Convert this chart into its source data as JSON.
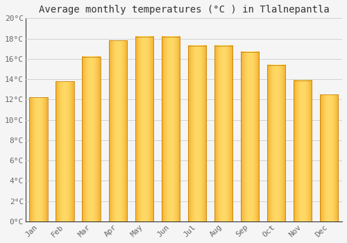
{
  "title": "Average monthly temperatures (°C ) in Tlalnepantla",
  "months": [
    "Jan",
    "Feb",
    "Mar",
    "Apr",
    "May",
    "Jun",
    "Jul",
    "Aug",
    "Sep",
    "Oct",
    "Nov",
    "Dec"
  ],
  "temperatures": [
    12.2,
    13.8,
    16.2,
    17.8,
    18.2,
    18.2,
    17.3,
    17.3,
    16.7,
    15.4,
    13.9,
    12.5
  ],
  "bar_color_edge": "#E8930A",
  "bar_color_center": "#FFD966",
  "bar_color_bottom": "#E8930A",
  "ylim": [
    0,
    20
  ],
  "ytick_step": 2,
  "background_color": "#F5F5F5",
  "plot_bg_color": "#F5F5F5",
  "grid_color": "#CCCCCC",
  "title_fontsize": 10,
  "tick_fontsize": 8,
  "tick_color": "#666666",
  "axis_color": "#333333",
  "font_family": "monospace",
  "bar_width": 0.7,
  "bar_gap": 0.05
}
